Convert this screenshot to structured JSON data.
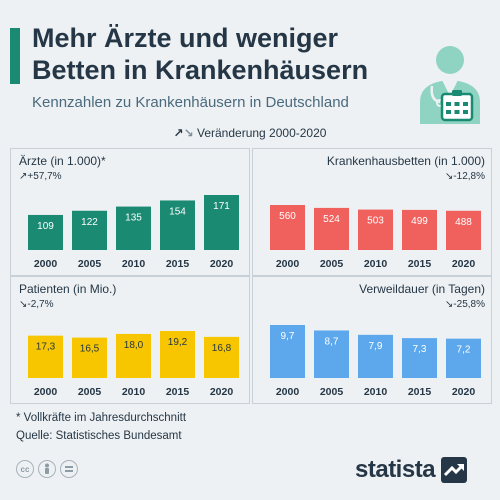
{
  "header": {
    "title_line1": "Mehr Ärzte und weniger",
    "title_line2": "Betten in Krankenhäusern",
    "subtitle": "Kennzahlen zu Krankenhäusern in Deutschland"
  },
  "legend": {
    "up_arrow": "↗",
    "down_arrow": "↘",
    "label": "Veränderung 2000-2020"
  },
  "footer": {
    "footnote": "* Vollkräfte im Jahresdurchschnitt",
    "source": "Quelle: Statistisches Bundesamt",
    "cc_icons": [
      "cc-icon",
      "by-icon",
      "nd-icon"
    ],
    "brand": "statista"
  },
  "colors": {
    "aerzte": "#1a8a72",
    "betten": "#f0615e",
    "patienten": "#f7c600",
    "verweil": "#5da8ec",
    "accent": "#1a8a72",
    "text": "#253746"
  },
  "chart_data": [
    {
      "id": "aerzte",
      "type": "bar",
      "title": "Ärzte (in 1.000)*",
      "change": "+57,7%",
      "direction": "up",
      "categories": [
        "2000",
        "2005",
        "2010",
        "2015",
        "2020"
      ],
      "values": [
        109,
        122,
        135,
        154,
        171
      ],
      "value_labels": [
        "109",
        "122",
        "135",
        "154",
        "171"
      ],
      "color": "#1a8a72"
    },
    {
      "id": "betten",
      "type": "bar",
      "title": "Krankenhausbetten (in 1.000)",
      "change": "-12,8%",
      "direction": "down",
      "categories": [
        "2000",
        "2005",
        "2010",
        "2015",
        "2020"
      ],
      "values": [
        560,
        524,
        503,
        499,
        488
      ],
      "value_labels": [
        "560",
        "524",
        "503",
        "499",
        "488"
      ],
      "color": "#f0615e"
    },
    {
      "id": "patienten",
      "type": "bar",
      "title": "Patienten (in Mio.)",
      "change": "-2,7%",
      "direction": "down",
      "categories": [
        "2000",
        "2005",
        "2010",
        "2015",
        "2020"
      ],
      "values": [
        17.3,
        16.5,
        18.0,
        19.2,
        16.8
      ],
      "value_labels": [
        "17,3",
        "16,5",
        "18,0",
        "19,2",
        "16,8"
      ],
      "color": "#f7c600"
    },
    {
      "id": "verweil",
      "type": "bar",
      "title": "Verweildauer (in Tagen)",
      "change": "-25,8%",
      "direction": "down",
      "categories": [
        "2000",
        "2005",
        "2010",
        "2015",
        "2020"
      ],
      "values": [
        9.7,
        8.7,
        7.9,
        7.3,
        7.2
      ],
      "value_labels": [
        "9,7",
        "8,7",
        "7,9",
        "7,3",
        "7,2"
      ],
      "color": "#5da8ec"
    }
  ]
}
